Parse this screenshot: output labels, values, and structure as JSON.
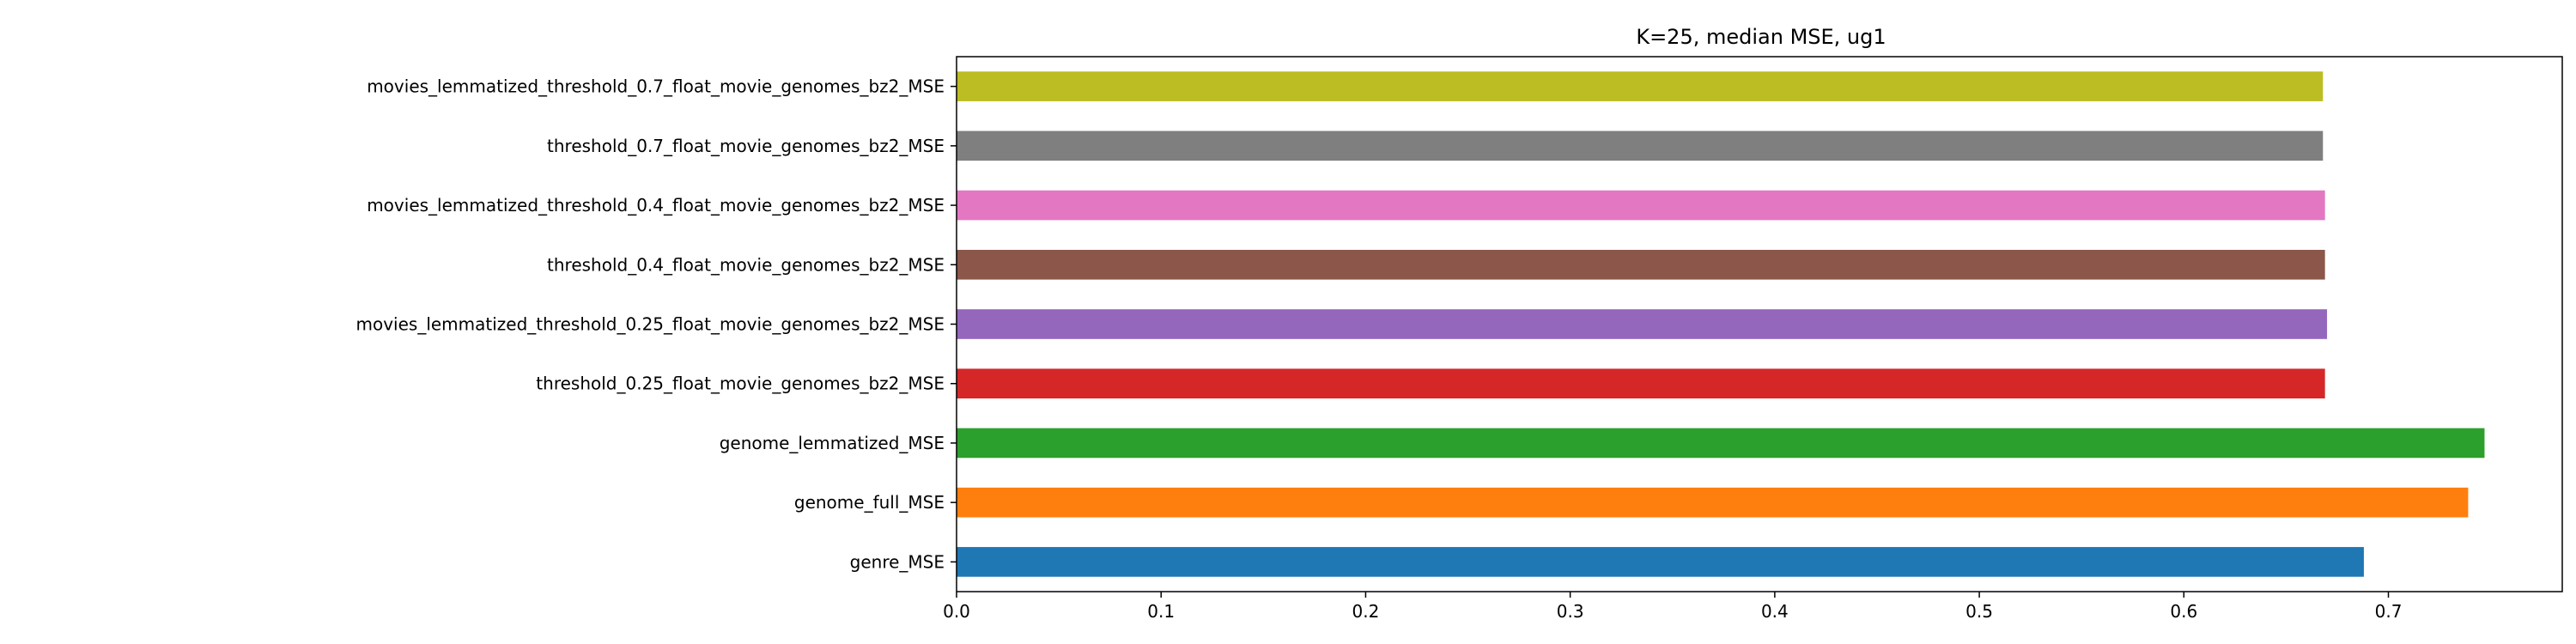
{
  "chart_data": {
    "type": "bar",
    "orientation": "horizontal",
    "title": "K=25, median MSE, ug1",
    "xlabel": "",
    "ylabel": "",
    "xlim": [
      0.0,
      0.785
    ],
    "xticks": [
      "0.0",
      "0.1",
      "0.2",
      "0.3",
      "0.4",
      "0.5",
      "0.6",
      "0.7"
    ],
    "grid": false,
    "legend": "none",
    "categories": [
      "genre_MSE",
      "genome_full_MSE",
      "genome_lemmatized_MSE",
      "threshold_0.25_float_movie_genomes_bz2_MSE",
      "movies_lemmatized_threshold_0.25_float_movie_genomes_bz2_MSE",
      "threshold_0.4_float_movie_genomes_bz2_MSE",
      "movies_lemmatized_threshold_0.4_float_movie_genomes_bz2_MSE",
      "threshold_0.7_float_movie_genomes_bz2_MSE",
      "movies_lemmatized_threshold_0.7_float_movie_genomes_bz2_MSE"
    ],
    "values": [
      0.688,
      0.739,
      0.747,
      0.669,
      0.67,
      0.669,
      0.669,
      0.668,
      0.668
    ],
    "colors": [
      "#1f77b4",
      "#ff7f0e",
      "#2ca02c",
      "#d62728",
      "#9467bd",
      "#8c564b",
      "#e377c2",
      "#7f7f7f",
      "#bcbd22"
    ]
  }
}
